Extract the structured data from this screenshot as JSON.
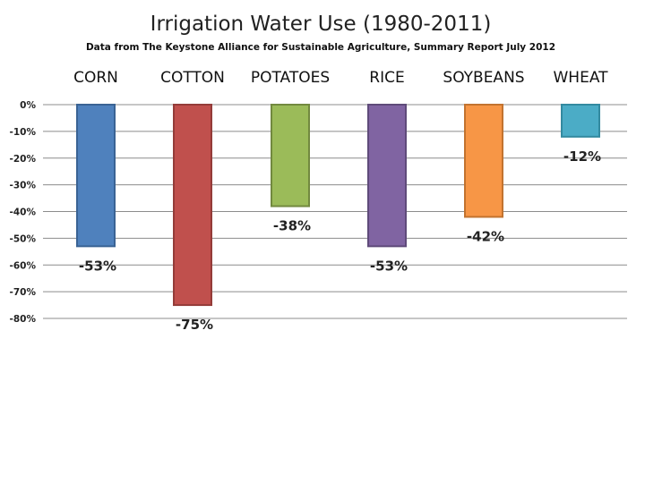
{
  "chart_data": {
    "type": "bar",
    "title": "Irrigation Water Use (1980-2011)",
    "subtitle": "Data from The Keystone Alliance for Sustainable Agriculture, Summary Report July 2012",
    "categories": [
      "CORN",
      "COTTON",
      "POTATOES",
      "RICE",
      "SOYBEANS",
      "WHEAT"
    ],
    "values": [
      -53,
      -75,
      -38,
      -53,
      -42,
      -12
    ],
    "data_labels": [
      "-53%",
      "-75%",
      "-38%",
      "-53%",
      "-42%",
      "-12%"
    ],
    "colors": [
      "#4f81bd",
      "#c0504d",
      "#9bbb59",
      "#8064a2",
      "#f79646",
      "#4bacc6"
    ],
    "border_colors": [
      "#3a6394",
      "#943c39",
      "#72893f",
      "#5f4b7a",
      "#c2732f",
      "#338aa0"
    ],
    "ylim": [
      -80,
      0
    ],
    "yticks": [
      0,
      -10,
      -20,
      -30,
      -40,
      -50,
      -60,
      -70,
      -80
    ],
    "ytick_labels": [
      "0%",
      "-10%",
      "-20%",
      "-30%",
      "-40%",
      "-50%",
      "-60%",
      "-70%",
      "-80%"
    ],
    "xlabel": "",
    "ylabel": "",
    "grid": true,
    "category_position": "top"
  }
}
